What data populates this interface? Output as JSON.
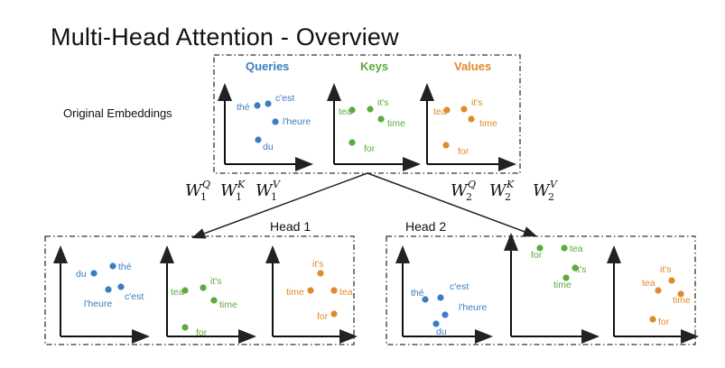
{
  "title": "Multi-Head Attention -  Overview",
  "original_label": "Original Embeddings",
  "colors": {
    "queries": "#3b7dc4",
    "keys": "#5aab3c",
    "values": "#e08a2a"
  },
  "columns": {
    "queries": "Queries",
    "keys": "Keys",
    "values": "Values"
  },
  "weights_1": [
    {
      "base": "W",
      "sub": "1",
      "sup": "Q"
    },
    {
      "base": "W",
      "sub": "1",
      "sup": "K"
    },
    {
      "base": "W",
      "sub": "1",
      "sup": "V"
    }
  ],
  "weights_2": [
    {
      "base": "W",
      "sub": "2",
      "sup": "Q"
    },
    {
      "base": "W",
      "sub": "2",
      "sup": "K"
    },
    {
      "base": "W",
      "sub": "2",
      "sup": "V"
    }
  ],
  "head1_label": "Head 1",
  "head2_label": "Head 2",
  "plots": {
    "original_queries": [
      "thé",
      "c'est",
      "l'heure",
      "du"
    ],
    "original_keys": [
      "tea",
      "it's",
      "time",
      "for"
    ],
    "original_values": [
      "tea",
      "it's",
      "time",
      "for"
    ],
    "head1_queries": [
      "du",
      "thé",
      "l'heure",
      "c'est"
    ],
    "head1_keys": [
      "tea",
      "it's",
      "time",
      "for"
    ],
    "head1_values": [
      "it's",
      "time",
      "tea",
      "for"
    ],
    "head2_queries": [
      "thé",
      "c'est",
      "l'heure",
      "du"
    ],
    "head2_keys": [
      "for",
      "tea",
      "it's",
      "time"
    ],
    "head2_values": [
      "it's",
      "tea",
      "time",
      "for"
    ]
  }
}
